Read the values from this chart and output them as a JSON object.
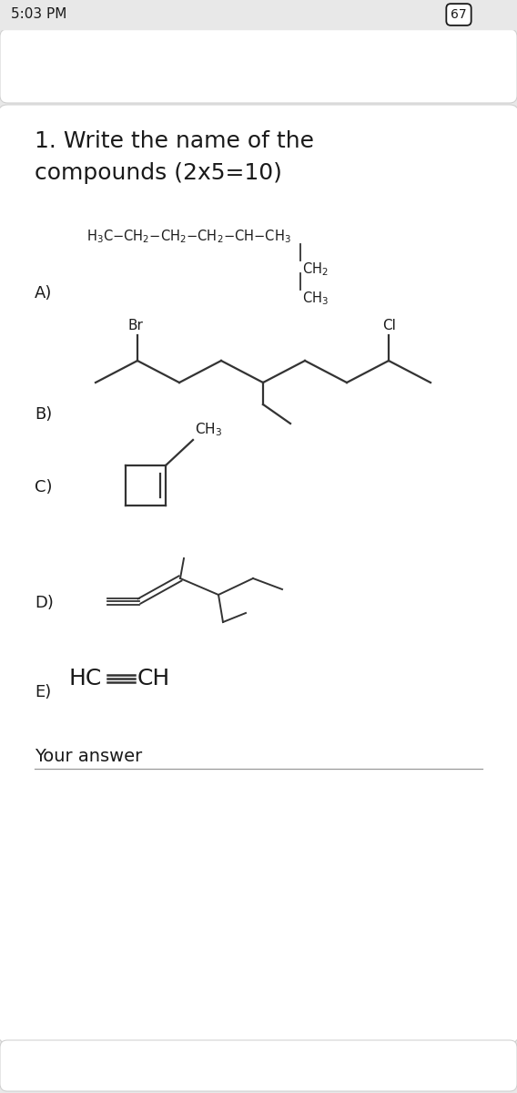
{
  "bg_color": "#e8e8e8",
  "card_color": "#ffffff",
  "status_bar": "5:03 PM",
  "battery": "67",
  "title_line1": "1. Write the name of the",
  "title_line2": "compounds (2x5=10)",
  "label_A": "A)",
  "label_B": "B)",
  "label_C": "C)",
  "label_D": "D)",
  "label_E": "E)",
  "your_answer": "Your answer",
  "text_color": "#1a1a1a",
  "line_color": "#333333",
  "font_size_title": 18,
  "font_size_label": 13,
  "font_size_chem": 10.5
}
